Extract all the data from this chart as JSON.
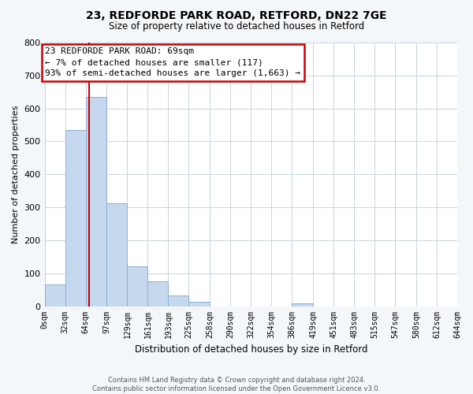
{
  "title": "23, REDFORDE PARK ROAD, RETFORD, DN22 7GE",
  "subtitle": "Size of property relative to detached houses in Retford",
  "xlabel": "Distribution of detached houses by size in Retford",
  "ylabel": "Number of detached properties",
  "bar_color": "#c5d8ee",
  "bar_edge_color": "#8ab0d4",
  "annotation_line1": "23 REDFORDE PARK ROAD: 69sqm",
  "annotation_line2": "← 7% of detached houses are smaller (117)",
  "annotation_line3": "93% of semi-detached houses are larger (1,663) →",
  "vline_x": 69,
  "vline_color": "#cc0000",
  "ylim": [
    0,
    800
  ],
  "yticks": [
    0,
    100,
    200,
    300,
    400,
    500,
    600,
    700,
    800
  ],
  "bin_edges": [
    0,
    32,
    64,
    97,
    129,
    161,
    193,
    225,
    258,
    290,
    322,
    354,
    386,
    419,
    451,
    483,
    515,
    547,
    580,
    612,
    644
  ],
  "bin_labels": [
    "0sqm",
    "32sqm",
    "64sqm",
    "97sqm",
    "129sqm",
    "161sqm",
    "193sqm",
    "225sqm",
    "258sqm",
    "290sqm",
    "322sqm",
    "354sqm",
    "386sqm",
    "419sqm",
    "451sqm",
    "483sqm",
    "515sqm",
    "547sqm",
    "580sqm",
    "612sqm",
    "644sqm"
  ],
  "bar_heights": [
    65,
    535,
    635,
    312,
    122,
    75,
    32,
    13,
    0,
    0,
    0,
    0,
    8,
    0,
    0,
    0,
    0,
    0,
    0,
    0
  ],
  "footer_line1": "Contains HM Land Registry data © Crown copyright and database right 2024.",
  "footer_line2": "Contains public sector information licensed under the Open Government Licence v3.0.",
  "bg_color": "#f4f7fa",
  "plot_bg_color": "#ffffff",
  "grid_color": "#c8d4e0",
  "annotation_box_color": "#cc0000"
}
